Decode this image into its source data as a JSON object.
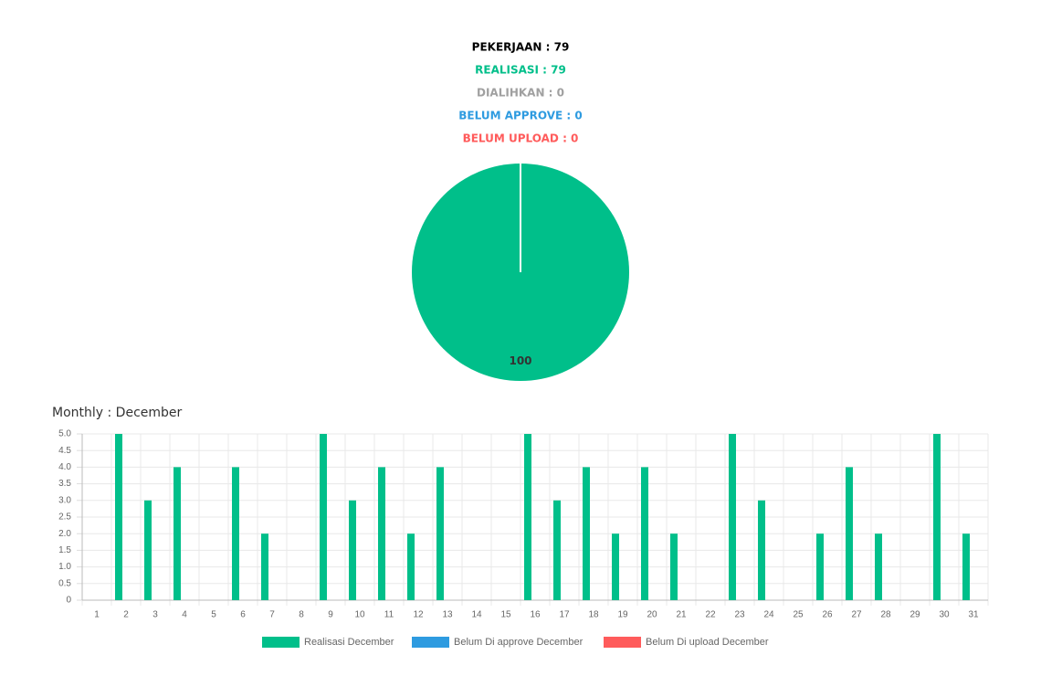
{
  "summary": [
    {
      "text": "PEKERJAAN : 79",
      "color": "#000000"
    },
    {
      "text": "REALISASI : 79",
      "color": "#00bf8a"
    },
    {
      "text": "DIALIHKAN : 0",
      "color": "#a0a0a0"
    },
    {
      "text": "BELUM APPROVE : 0",
      "color": "#2e9be0"
    },
    {
      "text": "BELUM UPLOAD : 0",
      "color": "#ff5b5b"
    }
  ],
  "chart_data": [
    {
      "type": "pie",
      "values": [
        100
      ],
      "colors": [
        "#00bf8a"
      ]
    },
    {
      "type": "bar",
      "title": "Monthly : December",
      "categories": [
        "1",
        "2",
        "3",
        "4",
        "5",
        "6",
        "7",
        "8",
        "9",
        "10",
        "11",
        "12",
        "13",
        "14",
        "15",
        "16",
        "17",
        "18",
        "19",
        "20",
        "21",
        "22",
        "23",
        "24",
        "25",
        "26",
        "27",
        "28",
        "29",
        "30",
        "31"
      ],
      "series": [
        {
          "name": "Realisasi December",
          "color": "#00bf8a",
          "values": [
            0,
            5,
            3,
            4,
            0,
            4,
            2,
            0,
            5,
            3,
            4,
            2,
            4,
            0,
            0,
            5,
            3,
            4,
            2,
            4,
            2,
            0,
            5,
            3,
            0,
            2,
            4,
            2,
            0,
            5,
            2
          ]
        },
        {
          "name": "Belum Di approve December",
          "color": "#2e9be0",
          "values": [
            0,
            0,
            0,
            0,
            0,
            0,
            0,
            0,
            0,
            0,
            0,
            0,
            0,
            0,
            0,
            0,
            0,
            0,
            0,
            0,
            0,
            0,
            0,
            0,
            0,
            0,
            0,
            0,
            0,
            0,
            0
          ]
        },
        {
          "name": "Belum Di upload December",
          "color": "#ff5b5b",
          "values": [
            0,
            0,
            0,
            0,
            0,
            0,
            0,
            0,
            0,
            0,
            0,
            0,
            0,
            0,
            0,
            0,
            0,
            0,
            0,
            0,
            0,
            0,
            0,
            0,
            0,
            0,
            0,
            0,
            0,
            0,
            0
          ]
        }
      ],
      "ylim": [
        0,
        5
      ],
      "yticks": [
        0,
        0.5,
        {
          "value": 1,
          "label": "1.0"
        },
        1.5,
        {
          "value": 2,
          "label": "2.0"
        },
        2.5,
        {
          "value": 3,
          "label": "3.0"
        },
        3.5,
        {
          "value": 4,
          "label": "4.0"
        },
        4.5,
        {
          "value": 5,
          "label": "5.0"
        }
      ],
      "grid": true
    }
  ]
}
